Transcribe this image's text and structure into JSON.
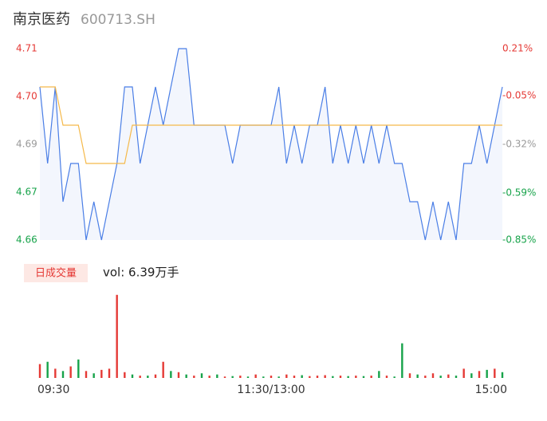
{
  "chart_data": [
    {
      "type": "line",
      "title": "南京医药",
      "subtitle": "600713.SH",
      "x": [
        0,
        4,
        8,
        12,
        16,
        20,
        24,
        28,
        32,
        36,
        40,
        44,
        48,
        52,
        56,
        60,
        64,
        68,
        72,
        76,
        80,
        84,
        88,
        92,
        96,
        100,
        104,
        108,
        112,
        116,
        120,
        124,
        128,
        132,
        136,
        140,
        144,
        148,
        152,
        156,
        160,
        164,
        168,
        172,
        176,
        180,
        184,
        188,
        192,
        196,
        200,
        204,
        208,
        212,
        216,
        220,
        224,
        228,
        232,
        236,
        240
      ],
      "xlim": [
        0,
        240
      ],
      "series": [
        {
          "color": "#4a7ee6",
          "values": [
            4.7,
            4.68,
            4.7,
            4.67,
            4.68,
            4.68,
            4.66,
            4.67,
            4.66,
            4.67,
            4.68,
            4.7,
            4.7,
            4.68,
            4.69,
            4.7,
            4.69,
            4.7,
            4.71,
            4.71,
            4.69,
            4.69,
            4.69,
            4.69,
            4.69,
            4.68,
            4.69,
            4.69,
            4.69,
            4.69,
            4.69,
            4.7,
            4.68,
            4.69,
            4.68,
            4.69,
            4.69,
            4.7,
            4.68,
            4.69,
            4.68,
            4.69,
            4.68,
            4.69,
            4.68,
            4.69,
            4.68,
            4.68,
            4.67,
            4.67,
            4.66,
            4.67,
            4.66,
            4.67,
            4.66,
            4.68,
            4.68,
            4.69,
            4.68,
            4.69,
            4.7
          ]
        },
        {
          "color": "#f5b94a",
          "values": [
            4.7,
            4.7,
            4.7,
            4.69,
            4.69,
            4.69,
            4.68,
            4.68,
            4.68,
            4.68,
            4.68,
            4.68,
            4.69,
            4.69,
            4.69,
            4.69,
            4.69,
            4.69,
            4.69,
            4.69,
            4.69,
            4.69,
            4.69,
            4.69,
            4.69,
            4.69,
            4.69,
            4.69,
            4.69,
            4.69,
            4.69,
            4.69,
            4.69,
            4.69,
            4.69,
            4.69,
            4.69,
            4.69,
            4.69,
            4.69,
            4.69,
            4.69,
            4.69,
            4.69,
            4.69,
            4.69,
            4.69,
            4.69,
            4.69,
            4.69,
            4.69,
            4.69,
            4.69,
            4.69,
            4.69,
            4.69,
            4.69,
            4.69,
            4.69,
            4.69,
            4.69
          ]
        }
      ],
      "ylim": [
        4.66,
        4.71
      ],
      "yticks": [
        {
          "value": 4.71,
          "label": "4.71"
        },
        {
          "value": 4.6975,
          "label": "4.70"
        },
        {
          "value": 4.685,
          "label": "4.69"
        },
        {
          "value": 4.6725,
          "label": "4.67"
        },
        {
          "value": 4.66,
          "label": "4.66"
        }
      ],
      "y2lim": [
        -0.85,
        0.21
      ],
      "y2ticks": [
        {
          "value": 0.21,
          "label": "0.21%"
        },
        {
          "value": -0.05,
          "label": "-0.05%"
        },
        {
          "value": -0.32,
          "label": "-0.32%"
        },
        {
          "value": -0.59,
          "label": "-0.59%"
        },
        {
          "value": -0.85,
          "label": "-0.85%"
        }
      ]
    },
    {
      "type": "bar",
      "badge": "日成交量",
      "annotation": "vol: 6.39万手",
      "x": [
        0,
        4,
        8,
        12,
        16,
        20,
        24,
        28,
        32,
        36,
        40,
        44,
        48,
        52,
        56,
        60,
        64,
        68,
        72,
        76,
        80,
        84,
        88,
        92,
        96,
        100,
        104,
        108,
        112,
        116,
        120,
        124,
        128,
        132,
        136,
        140,
        144,
        148,
        152,
        156,
        160,
        164,
        168,
        172,
        176,
        180,
        184,
        188,
        192,
        196,
        200,
        204,
        208,
        212,
        216,
        220,
        224,
        228,
        232,
        236,
        240
      ],
      "xlim": [
        0,
        240
      ],
      "xticks": [
        {
          "value": 0,
          "label": "09:30"
        },
        {
          "value": 120,
          "label": "11:30/13:00"
        },
        {
          "value": 240,
          "label": "15:00"
        }
      ],
      "values": [
        600,
        700,
        400,
        300,
        500,
        800,
        300,
        200,
        350,
        400,
        3600,
        250,
        150,
        100,
        100,
        150,
        700,
        300,
        250,
        150,
        100,
        200,
        100,
        150,
        60,
        80,
        100,
        60,
        150,
        60,
        100,
        60,
        150,
        100,
        120,
        80,
        100,
        120,
        80,
        100,
        80,
        100,
        80,
        100,
        300,
        100,
        60,
        1500,
        200,
        150,
        100,
        200,
        100,
        150,
        100,
        400,
        200,
        300,
        350,
        400,
        250
      ],
      "colors": [
        "#e53935",
        "#17a34a",
        "#e53935",
        "#17a34a",
        "#e53935",
        "#17a34a",
        "#e53935",
        "#17a34a",
        "#e53935",
        "#e53935",
        "#e53935",
        "#e53935",
        "#17a34a",
        "#e53935",
        "#17a34a",
        "#e53935",
        "#e53935",
        "#17a34a",
        "#e53935",
        "#17a34a",
        "#e53935",
        "#17a34a",
        "#e53935",
        "#17a34a",
        "#e53935",
        "#17a34a",
        "#e53935",
        "#17a34a",
        "#e53935",
        "#17a34a",
        "#e53935",
        "#17a34a",
        "#e53935",
        "#e53935",
        "#17a34a",
        "#e53935",
        "#e53935",
        "#e53935",
        "#17a34a",
        "#e53935",
        "#17a34a",
        "#e53935",
        "#17a34a",
        "#e53935",
        "#17a34a",
        "#e53935",
        "#17a34a",
        "#17a34a",
        "#e53935",
        "#17a34a",
        "#e53935",
        "#e53935",
        "#17a34a",
        "#e53935",
        "#17a34a",
        "#e53935",
        "#17a34a",
        "#e53935",
        "#17a34a",
        "#e53935",
        "#17a34a"
      ],
      "ylim": [
        0,
        3800
      ]
    }
  ]
}
